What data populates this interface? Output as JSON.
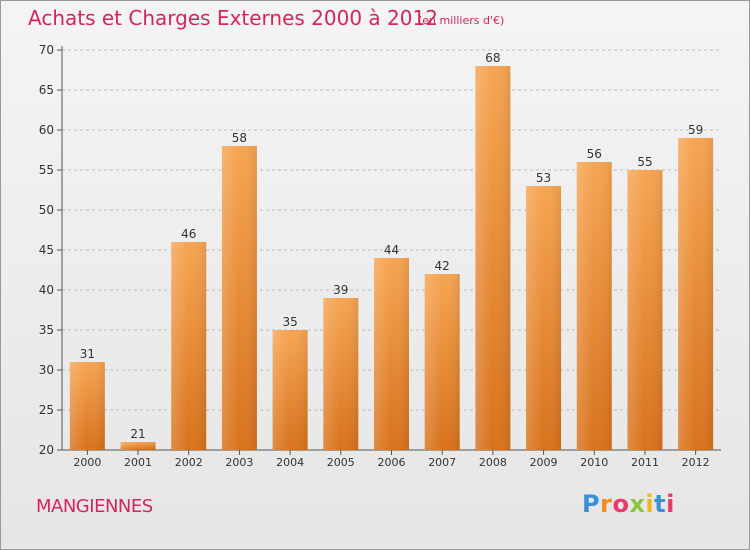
{
  "title": "Achats et Charges Externes 2000 à 2012",
  "unit_note": "(en milliers d'€)",
  "place": "MANGIENNES",
  "logo": {
    "letters": [
      "P",
      "r",
      "o",
      "x",
      "i",
      "t",
      "i"
    ]
  },
  "colors": {
    "title": "#d4265a",
    "bar_top": "#f6a552",
    "bar_bottom": "#d8721c",
    "gridline": "#bbbbbb"
  },
  "chart_data": {
    "type": "bar",
    "categories": [
      "2000",
      "2001",
      "2002",
      "2003",
      "2004",
      "2005",
      "2006",
      "2007",
      "2008",
      "2009",
      "2010",
      "2011",
      "2012"
    ],
    "values": [
      31,
      21,
      46,
      58,
      35,
      39,
      44,
      42,
      68,
      53,
      56,
      55,
      59
    ],
    "data_labels": [
      "31",
      "21",
      "46",
      "58",
      "35",
      "39",
      "44",
      "42",
      "68",
      "53",
      "56",
      "55",
      "59"
    ],
    "ylim": [
      20,
      70
    ],
    "yticks": [
      "20",
      "25",
      "30",
      "35",
      "40",
      "45",
      "50",
      "55",
      "60",
      "65",
      "70"
    ],
    "grid": "horizontal dashed",
    "legend": "none"
  }
}
